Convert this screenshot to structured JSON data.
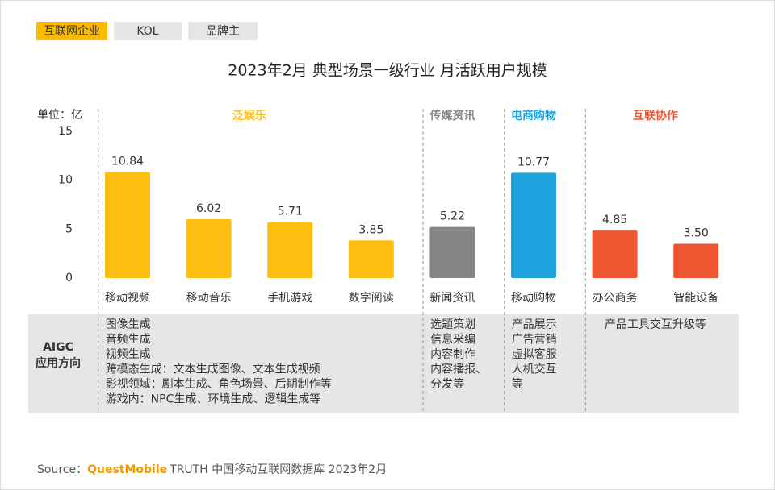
{
  "tabs": [
    {
      "label": "互联网企业",
      "active": true
    },
    {
      "label": "KOL",
      "active": false
    },
    {
      "label": "品牌主",
      "active": false
    }
  ],
  "chart_data": {
    "type": "bar",
    "title": "2023年2月 典型场景一级行业 月活跃用户规模",
    "unit_label": "单位：亿",
    "ylim": [
      0,
      15
    ],
    "yticks": [
      0,
      5,
      10,
      15
    ],
    "groups": [
      {
        "name": "泛娱乐",
        "color": "#ffbf10",
        "categories": [
          "移动视频",
          "移动音乐",
          "手机游戏",
          "数字阅读"
        ],
        "values": [
          10.84,
          6.02,
          5.71,
          3.85
        ],
        "value_labels": [
          "10.84",
          "6.02",
          "5.71",
          "3.85"
        ],
        "aigc": [
          "图像生成",
          "音频生成",
          "视频生成",
          "跨模态生成：文本生成图像、文本生成视频",
          "影视领域：剧本生成、角色场景、后期制作等",
          "游戏内：NPC生成、环境生成、逻辑生成等"
        ]
      },
      {
        "name": "传媒资讯",
        "color": "#858585",
        "categories": [
          "新闻资讯"
        ],
        "values": [
          5.22
        ],
        "value_labels": [
          "5.22"
        ],
        "aigc": [
          "选题策划",
          "信息采编",
          "内容制作",
          "内容播报、",
          "分发等"
        ]
      },
      {
        "name": "电商购物",
        "color": "#1fa3de",
        "categories": [
          "移动购物"
        ],
        "values": [
          10.77
        ],
        "value_labels": [
          "10.77"
        ],
        "aigc": [
          "产品展示",
          "广告营销",
          "虚拟客服",
          "人机交互",
          "等"
        ]
      },
      {
        "name": "互联协作",
        "color": "#ee5530",
        "categories": [
          "办公商务",
          "智能设备"
        ],
        "values": [
          4.85,
          3.5
        ],
        "value_labels": [
          "4.85",
          "3.50"
        ],
        "aigc": [
          "产品工具交互升级等"
        ]
      }
    ],
    "aigc_label": [
      "AIGC",
      "应用方向"
    ]
  },
  "source": {
    "prefix": "Source：",
    "brand": "QuestMobile",
    "text": "TRUTH 中国移动互联网数据库 2023年2月"
  }
}
